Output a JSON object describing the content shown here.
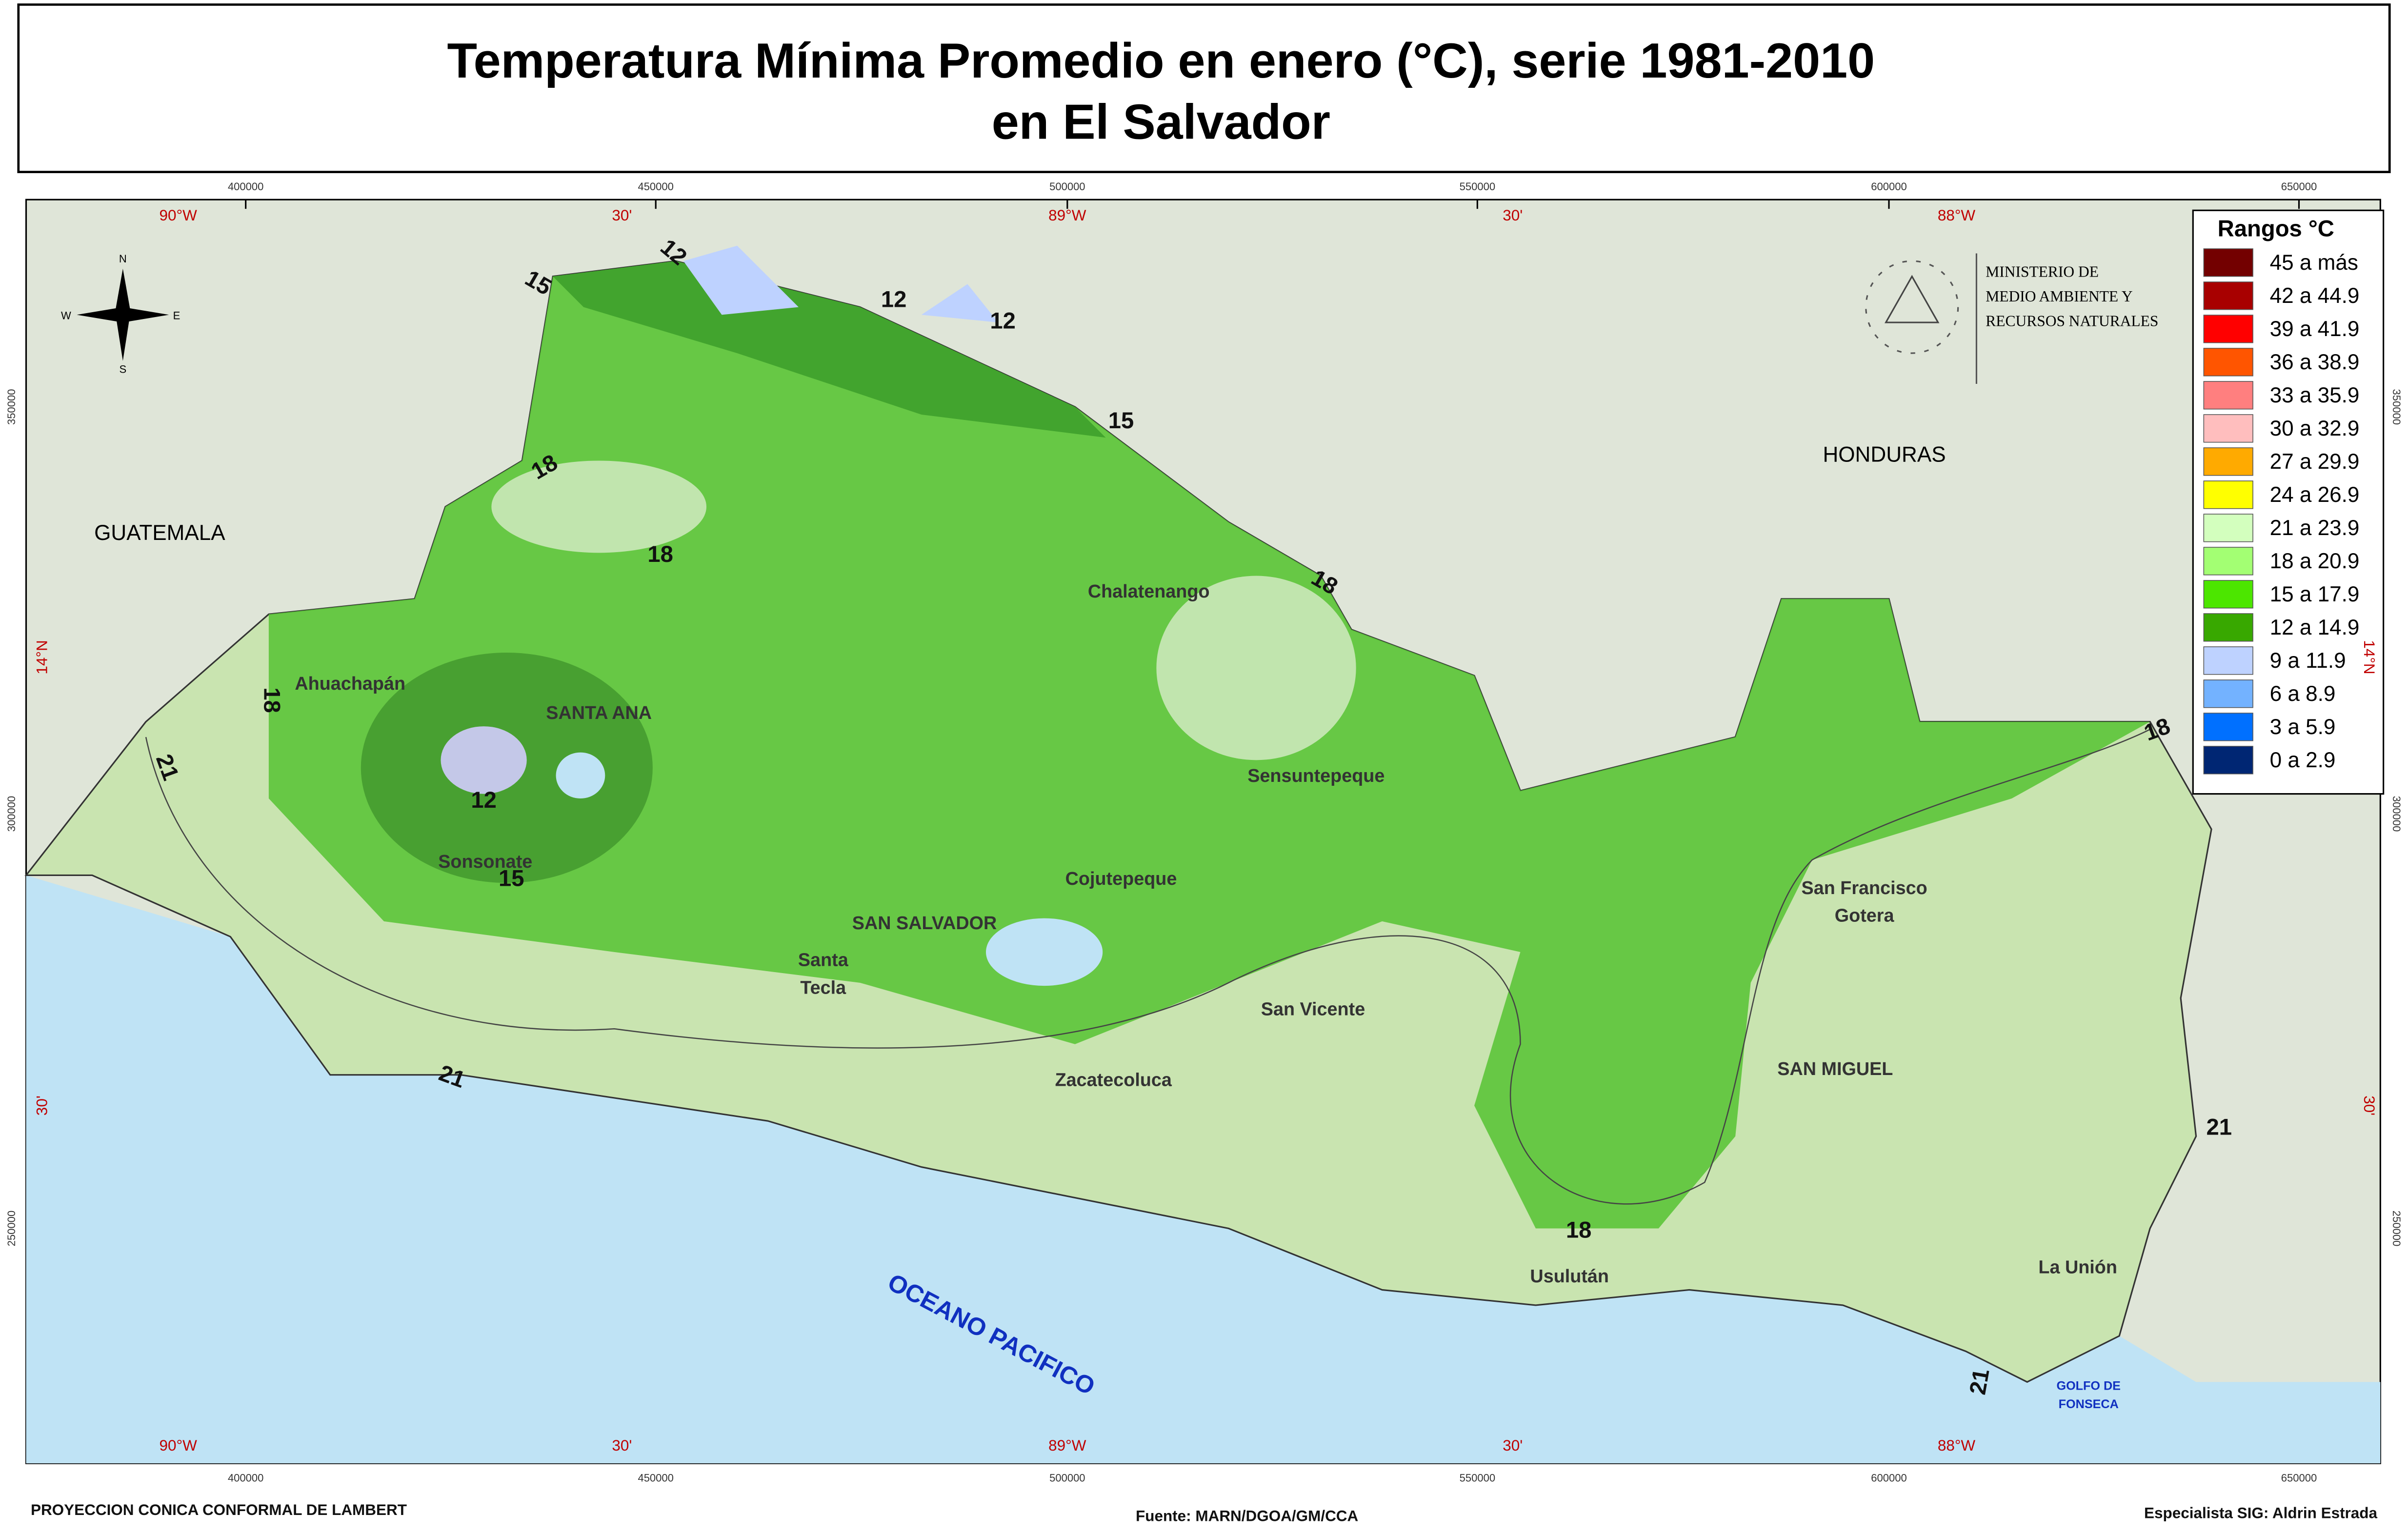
{
  "header": {
    "title_lines": [
      "Temperatura Mínima Promedio en enero (°C), serie 1981-2010",
      "en El Salvador"
    ]
  },
  "legend": {
    "title": "Rangos °C",
    "items": [
      {
        "label": "45 a más",
        "color": "#730000"
      },
      {
        "label": "42 a 44.9",
        "color": "#a80000"
      },
      {
        "label": "39 a 41.9",
        "color": "#ff0000"
      },
      {
        "label": "36 a 38.9",
        "color": "#ff5500"
      },
      {
        "label": "33 a 35.9",
        "color": "#ff7f7f"
      },
      {
        "label": "30 a 32.9",
        "color": "#ffbebe"
      },
      {
        "label": "27 a 29.9",
        "color": "#ffaa00"
      },
      {
        "label": "24 a 26.9",
        "color": "#ffff00"
      },
      {
        "label": "21 a 23.9",
        "color": "#d3ffbe"
      },
      {
        "label": "18 a 20.9",
        "color": "#a3ff73"
      },
      {
        "label": "15 a 17.9",
        "color": "#4ce600"
      },
      {
        "label": "12 a 14.9",
        "color": "#38a800"
      },
      {
        "label": "9 a 11.9",
        "color": "#bed2ff"
      },
      {
        "label": "6 a 8.9",
        "color": "#73b2ff"
      },
      {
        "label": "3 a 5.9",
        "color": "#0070ff"
      },
      {
        "label": "0 a 2.9",
        "color": "#002673"
      }
    ]
  },
  "institution": {
    "lines": [
      "MINISTERIO DE",
      "MEDIO AMBIENTE Y",
      "RECURSOS NATURALES"
    ]
  },
  "compass": {
    "n": "N",
    "e": "E",
    "s": "S",
    "w": "W"
  },
  "map": {
    "countries": [
      "GUATEMALA",
      "HONDURAS"
    ],
    "ocean": "OCEANO PACIFICO",
    "gulf": [
      "GOLFO DE",
      "FONSECA"
    ],
    "cities": [
      "Ahuachapán",
      "SANTA ANA",
      "Sonsonate",
      "Chalatenango",
      "Sensuntepeque",
      "Cojutepeque",
      "SAN SALVADOR",
      "Santa",
      "Tecla",
      "San Vicente",
      "Zacatecoluca",
      "San Francisco",
      "Gotera",
      "SAN MIGUEL",
      "Usulután",
      "La Unión"
    ],
    "isoline_labels": [
      12,
      12,
      12,
      12,
      15,
      15,
      15,
      18,
      18,
      18,
      18,
      18,
      18,
      21,
      21,
      21,
      21
    ]
  },
  "grid": {
    "eastings": [
      400000,
      450000,
      500000,
      550000,
      600000,
      650000
    ],
    "longitudes": [
      "90°W",
      "30'",
      "89°W",
      "30'",
      "88°W"
    ],
    "northings": [
      350000,
      300000,
      250000
    ],
    "latitudes": [
      "14°N",
      "30'"
    ]
  },
  "footer": {
    "projection": "PROYECCION CONICA CONFORMAL DE LAMBERT",
    "source": "Fuente: MARN/DGOA/GM/CCA",
    "author": "Especialista SIG: Aldrin Estrada"
  }
}
